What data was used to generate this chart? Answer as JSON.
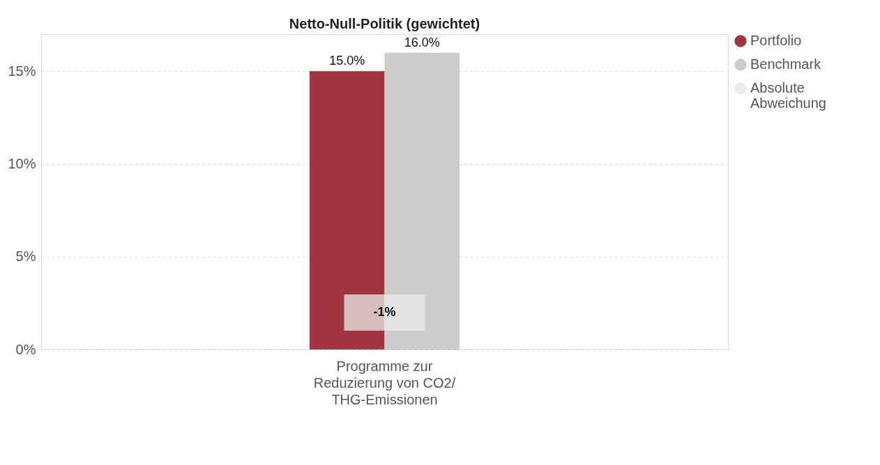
{
  "chart_data": {
    "type": "bar",
    "title": "Netto-Null-Politik (gewichtet)",
    "categories": [
      "Programme zur Reduzierung von CO2/ THG-Emissionen"
    ],
    "series": [
      {
        "name": "Portfolio",
        "color": "#a0343f",
        "values": [
          15.0
        ],
        "value_labels": [
          "15.0%"
        ]
      },
      {
        "name": "Benchmark",
        "color": "#cccccc",
        "values": [
          16.0
        ],
        "value_labels": [
          "16.0%"
        ]
      },
      {
        "name": "Absolute Abweichung",
        "color": "#ebebeb",
        "values": [
          null
        ]
      }
    ],
    "annotations": [
      {
        "text": "-1%",
        "x": "Programme zur Reduzierung von CO2/ THG-Emissionen"
      }
    ],
    "ylim": [
      0,
      17
    ],
    "yticks": [
      {
        "value": 0,
        "label": "0%"
      },
      {
        "value": 5,
        "label": "5%"
      },
      {
        "value": 10,
        "label": "10%"
      },
      {
        "value": 15,
        "label": "15%"
      }
    ],
    "grid": "y",
    "legend": "top right"
  }
}
